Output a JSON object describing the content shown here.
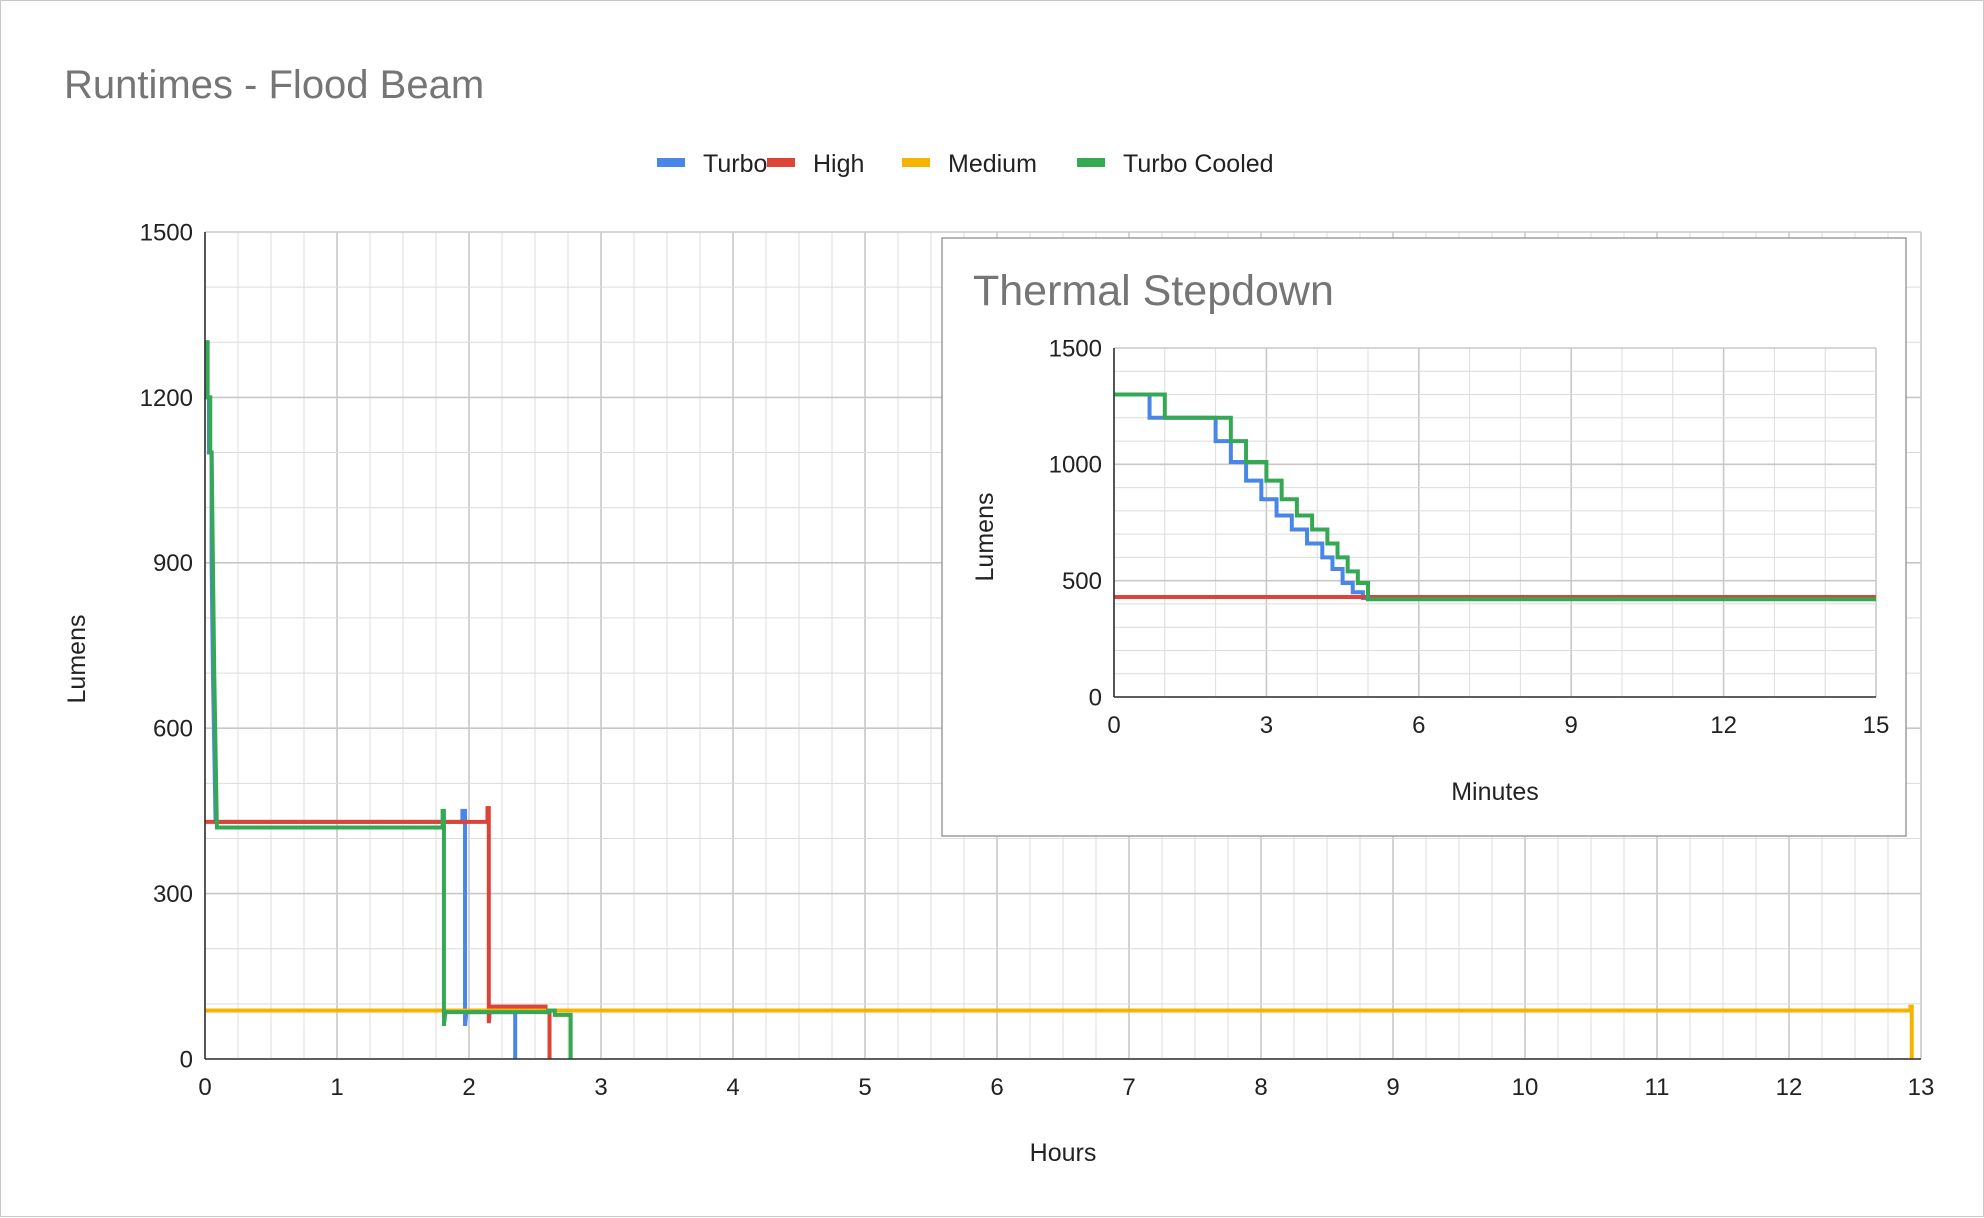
{
  "colors": {
    "turbo": "#4a86e8",
    "high": "#db4437",
    "medium": "#f4b400",
    "turbo_cooled": "#34a853",
    "gridline": "#dcdcdc",
    "major_gridline": "#c8c8c8",
    "axis": "#333333",
    "title": "#757575"
  },
  "chart_data": [
    {
      "type": "line",
      "title": "Runtimes - Flood Beam",
      "xlabel": "Hours",
      "ylabel": "Lumens",
      "xlim": [
        0,
        13
      ],
      "ylim": [
        0,
        1500
      ],
      "xticks": [
        "0",
        "1",
        "2",
        "3",
        "4",
        "5",
        "6",
        "7",
        "8",
        "9",
        "10",
        "11",
        "12",
        "13"
      ],
      "yticks": [
        "0",
        "300",
        "600",
        "900",
        "1200",
        "1500"
      ],
      "grid": true,
      "legend_position": "top",
      "series": [
        {
          "name": "Turbo",
          "color_key": "turbo",
          "points": [
            [
              0,
              1300
            ],
            [
              0.01,
              1300
            ],
            [
              0.01,
              1200
            ],
            [
              0.03,
              1200
            ],
            [
              0.03,
              1100
            ],
            [
              0.05,
              1100
            ],
            [
              0.05,
              900
            ],
            [
              0.06,
              700
            ],
            [
              0.08,
              430
            ],
            [
              1.95,
              430
            ],
            [
              1.95,
              450
            ],
            [
              1.97,
              450
            ],
            [
              1.97,
              60
            ],
            [
              1.98,
              85
            ],
            [
              2.35,
              85
            ],
            [
              2.35,
              0
            ]
          ]
        },
        {
          "name": "High",
          "color_key": "high",
          "points": [
            [
              0,
              430
            ],
            [
              2.14,
              430
            ],
            [
              2.14,
              455
            ],
            [
              2.15,
              455
            ],
            [
              2.15,
              65
            ],
            [
              2.16,
              95
            ],
            [
              2.58,
              95
            ],
            [
              2.58,
              85
            ],
            [
              2.61,
              85
            ],
            [
              2.61,
              0
            ]
          ]
        },
        {
          "name": "Medium",
          "color_key": "medium",
          "points": [
            [
              0,
              88
            ],
            [
              12.92,
              88
            ],
            [
              12.92,
              95
            ],
            [
              12.93,
              95
            ],
            [
              12.93,
              0
            ]
          ]
        },
        {
          "name": "Turbo Cooled",
          "color_key": "turbo_cooled",
          "points": [
            [
              0,
              1300
            ],
            [
              0.02,
              1300
            ],
            [
              0.02,
              1200
            ],
            [
              0.04,
              1200
            ],
            [
              0.04,
              1100
            ],
            [
              0.05,
              1100
            ],
            [
              0.06,
              900
            ],
            [
              0.07,
              700
            ],
            [
              0.09,
              420
            ],
            [
              1.8,
              420
            ],
            [
              1.8,
              450
            ],
            [
              1.81,
              450
            ],
            [
              1.81,
              60
            ],
            [
              1.82,
              85
            ],
            [
              2.6,
              85
            ],
            [
              2.6,
              88
            ],
            [
              2.65,
              88
            ],
            [
              2.65,
              80
            ],
            [
              2.77,
              80
            ],
            [
              2.77,
              0
            ]
          ]
        }
      ]
    },
    {
      "type": "line",
      "title": "Thermal Stepdown",
      "xlabel": "Minutes",
      "ylabel": "Lumens",
      "xlim": [
        0,
        15
      ],
      "ylim": [
        0,
        1500
      ],
      "xticks": [
        "0",
        "3",
        "6",
        "9",
        "12",
        "15"
      ],
      "yticks": [
        "0",
        "500",
        "1000",
        "1500"
      ],
      "grid": true,
      "series": [
        {
          "name": "Turbo",
          "color_key": "turbo",
          "points": [
            [
              0,
              1300
            ],
            [
              0.7,
              1300
            ],
            [
              0.7,
              1200
            ],
            [
              2.0,
              1200
            ],
            [
              2.0,
              1100
            ],
            [
              2.3,
              1100
            ],
            [
              2.3,
              1010
            ],
            [
              2.6,
              1010
            ],
            [
              2.6,
              930
            ],
            [
              2.9,
              930
            ],
            [
              2.9,
              850
            ],
            [
              3.2,
              850
            ],
            [
              3.2,
              780
            ],
            [
              3.5,
              780
            ],
            [
              3.5,
              720
            ],
            [
              3.8,
              720
            ],
            [
              3.8,
              660
            ],
            [
              4.1,
              660
            ],
            [
              4.1,
              600
            ],
            [
              4.3,
              600
            ],
            [
              4.3,
              550
            ],
            [
              4.5,
              550
            ],
            [
              4.5,
              490
            ],
            [
              4.7,
              490
            ],
            [
              4.7,
              450
            ],
            [
              4.9,
              450
            ],
            [
              4.9,
              425
            ],
            [
              15,
              425
            ]
          ]
        },
        {
          "name": "High",
          "color_key": "high",
          "points": [
            [
              0,
              430
            ],
            [
              15,
              430
            ]
          ]
        },
        {
          "name": "Turbo Cooled",
          "color_key": "turbo_cooled",
          "points": [
            [
              0,
              1300
            ],
            [
              1.0,
              1300
            ],
            [
              1.0,
              1200
            ],
            [
              2.3,
              1200
            ],
            [
              2.3,
              1100
            ],
            [
              2.6,
              1100
            ],
            [
              2.6,
              1010
            ],
            [
              3.0,
              1010
            ],
            [
              3.0,
              930
            ],
            [
              3.3,
              930
            ],
            [
              3.3,
              850
            ],
            [
              3.6,
              850
            ],
            [
              3.6,
              780
            ],
            [
              3.9,
              780
            ],
            [
              3.9,
              720
            ],
            [
              4.2,
              720
            ],
            [
              4.2,
              660
            ],
            [
              4.4,
              660
            ],
            [
              4.4,
              600
            ],
            [
              4.6,
              600
            ],
            [
              4.6,
              540
            ],
            [
              4.8,
              540
            ],
            [
              4.8,
              490
            ],
            [
              5.0,
              490
            ],
            [
              5.0,
              420
            ],
            [
              15,
              420
            ]
          ]
        }
      ]
    }
  ]
}
